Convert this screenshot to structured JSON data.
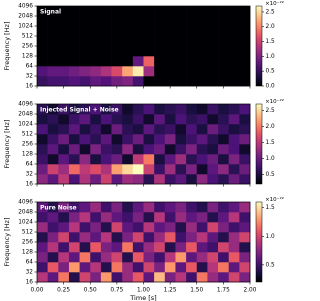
{
  "chart_data": [
    {
      "type": "heatmap",
      "title": "Signal",
      "ylabel": "Frequency [Hz]",
      "colormap": "magma",
      "log_y": true,
      "zoffset_label": "×10⁻²²",
      "x_edges": [
        0,
        0.1,
        0.2,
        0.3,
        0.4,
        0.5,
        0.6,
        0.7,
        0.8,
        0.9,
        1.0,
        1.1,
        1.2,
        1.3,
        1.4,
        1.5,
        1.6,
        1.7,
        1.8,
        1.9,
        2.0
      ],
      "y_edges": [
        16,
        32,
        64,
        128,
        256,
        512,
        1024,
        2048,
        4096
      ],
      "z": [
        [
          0.5,
          0.6,
          0.6,
          0.7,
          0.6,
          0.8,
          0.7,
          0.9,
          1.0,
          0.6,
          0,
          0,
          0,
          0,
          0,
          0,
          0,
          0,
          0,
          0
        ],
        [
          0.7,
          0.8,
          0.8,
          0.9,
          1.0,
          1.1,
          1.3,
          1.6,
          2.2,
          2.6,
          1.2,
          0,
          0,
          0,
          0,
          0,
          0,
          0,
          0,
          0
        ],
        [
          0,
          0,
          0,
          0,
          0,
          0,
          0,
          0,
          0,
          0.8,
          1.8,
          0,
          0,
          0,
          0,
          0,
          0,
          0,
          0,
          0
        ],
        [
          0,
          0,
          0,
          0,
          0,
          0,
          0,
          0,
          0,
          0,
          0,
          0,
          0,
          0,
          0,
          0,
          0,
          0,
          0,
          0
        ],
        [
          0,
          0,
          0,
          0,
          0,
          0,
          0,
          0,
          0,
          0,
          0,
          0,
          0,
          0,
          0,
          0,
          0,
          0,
          0,
          0
        ],
        [
          0,
          0,
          0,
          0,
          0,
          0,
          0,
          0,
          0,
          0,
          0,
          0,
          0,
          0,
          0,
          0,
          0,
          0,
          0,
          0
        ],
        [
          0,
          0,
          0,
          0,
          0,
          0,
          0,
          0,
          0,
          0,
          0,
          0,
          0,
          0,
          0,
          0,
          0,
          0,
          0,
          0
        ],
        [
          0,
          0,
          0,
          0,
          0,
          0,
          0,
          0,
          0,
          0,
          0,
          0,
          0,
          0,
          0,
          0,
          0,
          0,
          0,
          0
        ]
      ],
      "xlim": [
        0,
        2
      ],
      "xticks": [
        0,
        0.25,
        0.5,
        0.75,
        1,
        1.25,
        1.5,
        1.75,
        2
      ],
      "ylim": [
        16,
        4096
      ],
      "yticks": [
        16,
        32,
        64,
        128,
        256,
        512,
        1024,
        2048,
        4096
      ],
      "zlim": [
        0,
        2.7
      ],
      "zticks": [
        {
          "value": 0,
          "label": "0.0"
        },
        0.5,
        {
          "value": 1,
          "label": "1.0"
        },
        1.5,
        {
          "value": 2,
          "label": "2.0"
        },
        2.5
      ]
    },
    {
      "type": "heatmap",
      "title": "Injected Signal + Noise",
      "ylabel": "Frequency [Hz]",
      "colormap": "magma",
      "log_y": true,
      "zoffset_label": "×10⁻²²",
      "x_edges": [
        0,
        0.1,
        0.2,
        0.3,
        0.4,
        0.5,
        0.6,
        0.7,
        0.8,
        0.9,
        1.0,
        1.1,
        1.2,
        1.3,
        1.4,
        1.5,
        1.6,
        1.7,
        1.8,
        1.9,
        2.0
      ],
      "y_edges": [
        16,
        32,
        64,
        128,
        256,
        512,
        1024,
        2048,
        4096
      ],
      "z": [
        [
          1.2,
          0.9,
          1.5,
          0.8,
          1.4,
          1.0,
          1.6,
          0.9,
          1.3,
          1.2,
          0.6,
          1.4,
          0.7,
          0.9,
          0.5,
          1.2,
          0.8,
          0.6,
          1.0,
          0.7
        ],
        [
          1.0,
          1.6,
          1.3,
          1.9,
          1.5,
          1.7,
          1.4,
          2.2,
          2.5,
          2.7,
          1.6,
          0.7,
          1.3,
          0.6,
          1.1,
          0.4,
          0.9,
          1.2,
          0.6,
          1.0
        ],
        [
          0.7,
          0.4,
          0.9,
          0.6,
          1.2,
          0.5,
          0.8,
          1.0,
          0.4,
          1.5,
          2.0,
          0.5,
          0.9,
          1.3,
          0.6,
          0.8,
          1.0,
          0.5,
          1.1,
          0.7
        ],
        [
          0.6,
          0.9,
          0.5,
          1.0,
          0.4,
          1.1,
          0.7,
          0.6,
          1.2,
          0.5,
          0.8,
          1.0,
          0.4,
          0.7,
          1.1,
          0.6,
          0.5,
          1.0,
          0.8,
          0.4
        ],
        [
          0.4,
          0.7,
          1.0,
          0.5,
          0.8,
          0.6,
          0.9,
          0.4,
          0.7,
          1.0,
          0.5,
          0.8,
          1.1,
          0.5,
          0.7,
          0.9,
          0.6,
          0.4,
          0.8,
          1.0
        ],
        [
          0.8,
          0.5,
          0.6,
          0.9,
          0.5,
          0.7,
          0.4,
          1.0,
          0.6,
          0.5,
          0.9,
          0.6,
          0.7,
          0.4,
          0.8,
          0.5,
          1.0,
          0.7,
          0.5,
          0.6
        ],
        [
          0.5,
          0.6,
          0.4,
          0.7,
          0.9,
          0.5,
          0.8,
          0.6,
          0.5,
          0.7,
          0.4,
          0.9,
          0.5,
          0.8,
          0.6,
          0.7,
          0.4,
          0.6,
          0.9,
          0.5
        ],
        [
          0.6,
          0.4,
          0.7,
          0.5,
          0.6,
          0.8,
          0.5,
          0.7,
          0.4,
          0.6,
          0.8,
          0.5,
          0.6,
          0.7,
          0.5,
          0.4,
          0.7,
          0.5,
          0.6,
          0.8
        ]
      ],
      "xlim": [
        0,
        2
      ],
      "xticks": [
        0,
        0.25,
        0.5,
        0.75,
        1,
        1.25,
        1.5,
        1.75,
        2
      ],
      "ylim": [
        16,
        4096
      ],
      "yticks": [
        16,
        32,
        64,
        128,
        256,
        512,
        1024,
        2048,
        4096
      ],
      "zlim": [
        0.2,
        2.7
      ],
      "zticks": [
        0.5,
        {
          "value": 1,
          "label": "1.0"
        },
        1.5,
        {
          "value": 2,
          "label": "2.0"
        },
        2.5
      ]
    },
    {
      "type": "heatmap",
      "title": "Pure Noise",
      "ylabel": "Frequency [Hz]",
      "xlabel": "Time [s]",
      "colormap": "magma",
      "log_y": true,
      "zoffset_label": "×10⁻²²",
      "x_edges": [
        0,
        0.1,
        0.2,
        0.3,
        0.4,
        0.5,
        0.6,
        0.7,
        0.8,
        0.9,
        1.0,
        1.1,
        1.2,
        1.3,
        1.4,
        1.5,
        1.6,
        1.7,
        1.8,
        1.9,
        2.0
      ],
      "y_edges": [
        16,
        32,
        64,
        128,
        256,
        512,
        1024,
        2048,
        4096
      ],
      "z": [
        [
          0.9,
          0.6,
          1.2,
          0.4,
          1.0,
          0.7,
          1.3,
          0.5,
          0.8,
          1.1,
          0.6,
          1.4,
          0.7,
          0.9,
          0.5,
          1.2,
          0.8,
          0.6,
          1.0,
          0.7
        ],
        [
          0.5,
          1.1,
          0.7,
          1.3,
          0.6,
          0.9,
          0.4,
          1.2,
          0.8,
          0.5,
          1.0,
          0.7,
          1.3,
          0.6,
          1.1,
          0.4,
          0.9,
          1.2,
          0.6,
          1.0
        ],
        [
          0.7,
          0.4,
          0.9,
          0.6,
          1.2,
          0.5,
          0.8,
          1.0,
          0.4,
          1.1,
          0.7,
          0.5,
          0.9,
          1.3,
          0.6,
          0.8,
          1.0,
          0.5,
          1.1,
          0.7
        ],
        [
          0.6,
          0.9,
          0.5,
          1.0,
          0.4,
          1.1,
          0.7,
          0.6,
          1.2,
          0.5,
          0.8,
          1.0,
          0.4,
          0.7,
          1.1,
          0.6,
          0.5,
          1.0,
          0.8,
          0.4
        ],
        [
          0.4,
          0.7,
          1.0,
          0.5,
          0.8,
          0.6,
          0.9,
          0.4,
          0.7,
          1.0,
          0.5,
          0.8,
          1.1,
          0.5,
          0.7,
          0.9,
          0.6,
          0.4,
          0.8,
          1.0
        ],
        [
          0.8,
          0.5,
          0.6,
          0.9,
          0.5,
          0.7,
          0.4,
          1.0,
          0.6,
          0.5,
          0.9,
          0.6,
          0.7,
          0.4,
          0.8,
          0.5,
          1.0,
          0.7,
          0.5,
          0.6
        ],
        [
          0.5,
          0.6,
          0.4,
          0.7,
          0.9,
          0.5,
          0.8,
          0.6,
          0.5,
          0.7,
          0.4,
          0.9,
          0.5,
          0.8,
          0.6,
          0.7,
          0.4,
          0.6,
          0.9,
          0.5
        ],
        [
          0.6,
          0.4,
          0.7,
          0.5,
          0.6,
          0.8,
          0.5,
          0.7,
          0.4,
          0.6,
          0.8,
          0.5,
          0.6,
          0.7,
          0.5,
          0.4,
          0.7,
          0.5,
          0.6,
          0.8
        ]
      ],
      "xlim": [
        0,
        2
      ],
      "xticks": [
        {
          "value": 0,
          "label": "0.00"
        },
        {
          "value": 0.25,
          "label": "0.25"
        },
        {
          "value": 0.5,
          "label": "0.50"
        },
        {
          "value": 0.75,
          "label": "0.75"
        },
        {
          "value": 1,
          "label": "1.00"
        },
        {
          "value": 1.25,
          "label": "1.25"
        },
        {
          "value": 1.5,
          "label": "1.50"
        },
        {
          "value": 1.75,
          "label": "1.75"
        },
        {
          "value": 2,
          "label": "2.00"
        }
      ],
      "ylim": [
        16,
        4096
      ],
      "yticks": [
        16,
        32,
        64,
        128,
        256,
        512,
        1024,
        2048,
        4096
      ],
      "zlim": [
        0.2,
        1.6
      ],
      "zticks": [
        0.5,
        {
          "value": 1,
          "label": "1.0"
        },
        1.5
      ]
    }
  ]
}
